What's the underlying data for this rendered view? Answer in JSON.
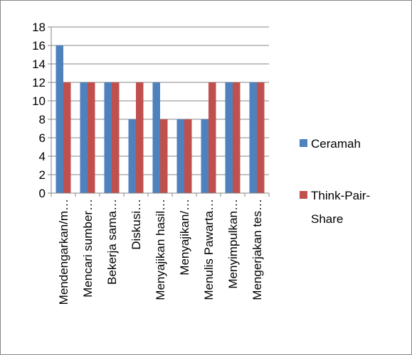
{
  "chart_data": {
    "type": "bar",
    "categories": [
      "Mendengarkan/m…",
      "Mencari sumber…",
      "Bekerja sama…",
      "Diskusi…",
      "Menyajikan hasil…",
      "Menyajikan/…",
      "Menulis Pawarta…",
      "Menyimpulkan…",
      "Mengerjakan tes…"
    ],
    "series": [
      {
        "name": "Ceramah",
        "color": "#4f81bd",
        "values": [
          16,
          12,
          12,
          8,
          12,
          8,
          8,
          12,
          12
        ]
      },
      {
        "name": "Think-Pair-Share",
        "color": "#c0504d",
        "values": [
          12,
          12,
          12,
          12,
          8,
          8,
          12,
          12,
          12
        ]
      }
    ],
    "ylim": [
      0,
      18
    ],
    "yticks": [
      0,
      2,
      4,
      6,
      8,
      10,
      12,
      14,
      16,
      18
    ],
    "grid": true,
    "legend": "right"
  }
}
